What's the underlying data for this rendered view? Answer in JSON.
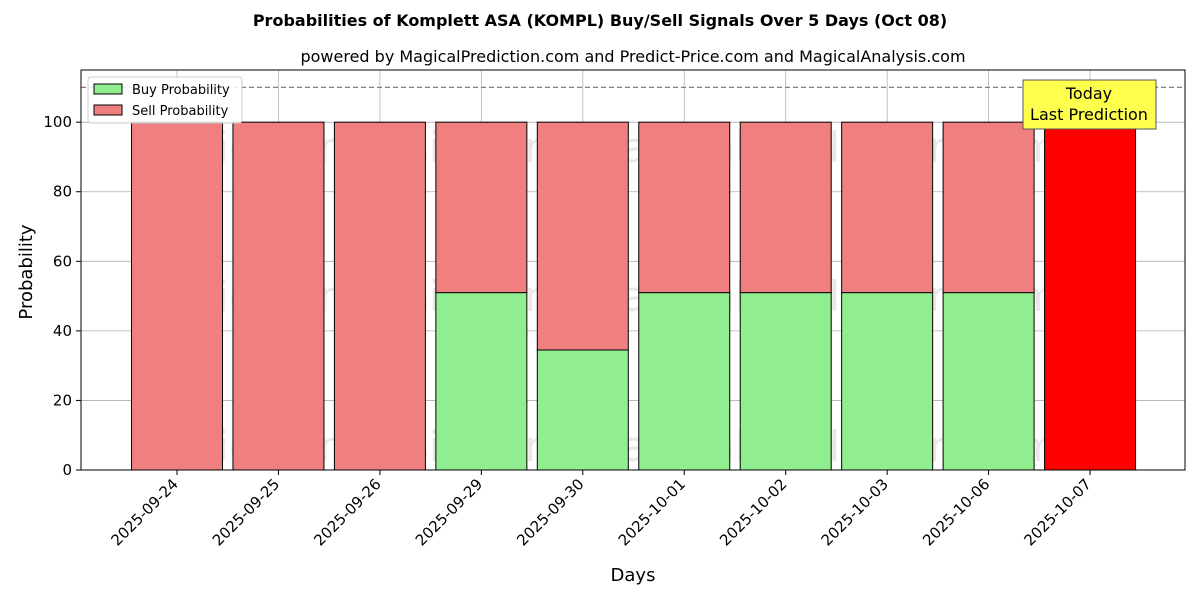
{
  "chart_data": {
    "type": "bar",
    "stacked": true,
    "title": "Probabilities of Komplett ASA (KOMPL) Buy/Sell Signals Over 5 Days (Oct 08)",
    "subtitle": "powered by MagicalPrediction.com and Predict-Price.com and MagicalAnalysis.com",
    "xlabel": "Days",
    "ylabel": "Probability",
    "ylim": [
      0,
      115
    ],
    "yticks": [
      0,
      20,
      40,
      60,
      80,
      100
    ],
    "grid": true,
    "legend_position": "top-left",
    "categories": [
      "2025-09-24",
      "2025-09-25",
      "2025-09-26",
      "2025-09-29",
      "2025-09-30",
      "2025-10-01",
      "2025-10-02",
      "2025-10-03",
      "2025-10-06",
      "2025-10-07"
    ],
    "series": [
      {
        "name": "Buy Probability",
        "color": "#90ee90",
        "values": [
          0,
          0,
          0,
          51,
          34.5,
          51,
          51,
          51,
          51,
          0
        ]
      },
      {
        "name": "Sell Probability",
        "color": "#f08080",
        "values": [
          100,
          100,
          100,
          49,
          65.5,
          49,
          49,
          49,
          49,
          100
        ]
      }
    ],
    "highlight": {
      "category": "2025-10-07",
      "color": "#ff0000"
    },
    "reference_line": {
      "y": 110,
      "style": "dashed",
      "color": "#808080"
    },
    "annotation": {
      "lines": [
        "Today",
        "Last Prediction"
      ],
      "background": "#ffff4d"
    },
    "watermarks": [
      "MagicalAnalysis.com",
      "MagicalPrediction.com"
    ]
  }
}
